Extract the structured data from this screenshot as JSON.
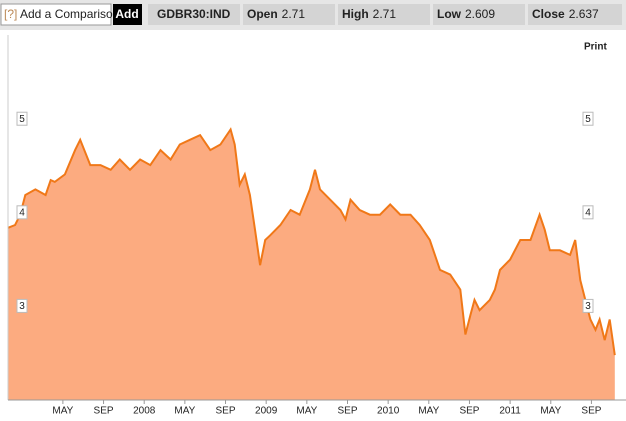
{
  "toolbar": {
    "help": "[?]",
    "comparison": "Add a Comparison",
    "add": "Add",
    "ticker": "GDBR30:IND",
    "quotes": [
      {
        "label": "Open",
        "value": 2.71
      },
      {
        "label": "High",
        "value": 2.71
      },
      {
        "label": "Low",
        "value": 2.609
      },
      {
        "label": "Close",
        "value": 2.637
      }
    ]
  },
  "print": "Print",
  "chart_data": {
    "type": "area",
    "color": "#f07818",
    "fill": "#fcab80",
    "x": [
      -1.4,
      -0.7,
      -0.2,
      0.3,
      1.3,
      2.3,
      2.8,
      3.2,
      4.2,
      5.2,
      5.7,
      6.7,
      7.7,
      8.7,
      9.6,
      10.6,
      11.6,
      12.6,
      13.6,
      14.6,
      15.5,
      16.5,
      17.5,
      18.5,
      19.5,
      20.5,
      20.9,
      21.4,
      21.9,
      22.4,
      22.9,
      23.4,
      23.9,
      24.4,
      25.4,
      26.4,
      27.3,
      28.3,
      28.8,
      29.3,
      30.3,
      31.3,
      31.8,
      32.3,
      33.2,
      34.2,
      35.2,
      36.2,
      37.2,
      38.2,
      39.1,
      40.1,
      41.1,
      42.1,
      43.1,
      43.6,
      44.1,
      44.5,
      45.0,
      46.0,
      46.5,
      47.0,
      48.0,
      49.0,
      50.0,
      50.9,
      51.4,
      51.9,
      52.9,
      53.9,
      54.4,
      54.9,
      55.4,
      55.9,
      56.4,
      56.8,
      57.3,
      57.8,
      58.3
    ],
    "values": [
      3.84,
      3.87,
      3.98,
      4.19,
      4.25,
      4.19,
      4.35,
      4.33,
      4.41,
      4.67,
      4.78,
      4.51,
      4.51,
      4.46,
      4.57,
      4.46,
      4.57,
      4.51,
      4.67,
      4.57,
      4.73,
      4.78,
      4.83,
      4.67,
      4.73,
      4.89,
      4.73,
      4.3,
      4.41,
      4.19,
      3.82,
      3.44,
      3.71,
      3.76,
      3.87,
      4.03,
      3.98,
      4.25,
      4.46,
      4.25,
      4.14,
      4.03,
      3.93,
      4.14,
      4.03,
      3.98,
      3.98,
      4.09,
      3.98,
      3.98,
      3.87,
      3.71,
      3.39,
      3.34,
      3.18,
      2.7,
      2.91,
      3.07,
      2.96,
      3.07,
      3.18,
      3.39,
      3.5,
      3.71,
      3.71,
      3.98,
      3.82,
      3.6,
      3.6,
      3.55,
      3.71,
      3.28,
      3.07,
      2.86,
      2.75,
      2.86,
      2.64,
      2.86,
      2.48
    ],
    "xlim": [
      -1.4,
      59.4
    ],
    "xticks": [
      {
        "value": 4,
        "label": "MAY"
      },
      {
        "value": 8,
        "label": "SEP"
      },
      {
        "value": 12,
        "label": "2008"
      },
      {
        "value": 16,
        "label": "MAY"
      },
      {
        "value": 20,
        "label": "SEP"
      },
      {
        "value": 24,
        "label": "2009"
      },
      {
        "value": 28,
        "label": "MAY"
      },
      {
        "value": 32,
        "label": "SEP"
      },
      {
        "value": 36,
        "label": "2010"
      },
      {
        "value": 40,
        "label": "MAY"
      },
      {
        "value": 44,
        "label": "SEP"
      },
      {
        "value": 48,
        "label": "2011"
      },
      {
        "value": 52,
        "label": "MAY"
      },
      {
        "value": 56,
        "label": "SEP"
      }
    ],
    "ylim": [
      2,
      5.9
    ],
    "yticks": [
      3,
      4,
      5
    ]
  }
}
